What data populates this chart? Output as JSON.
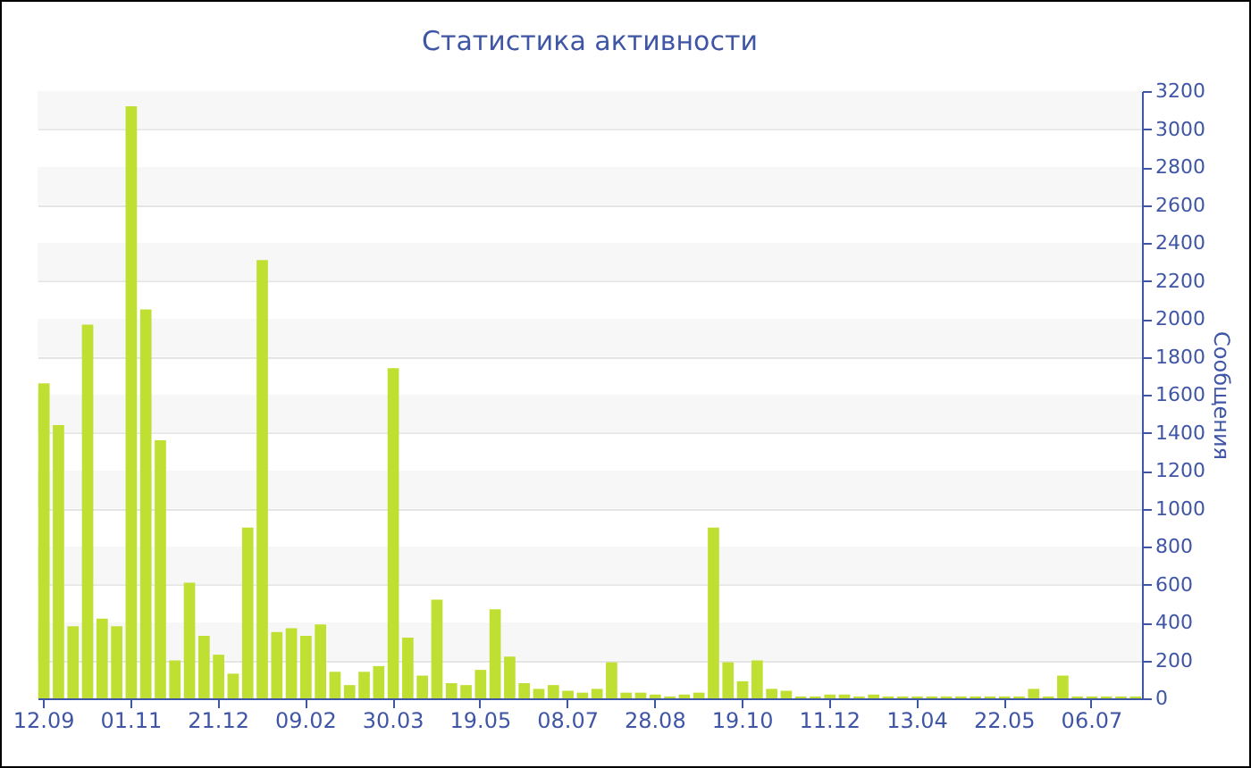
{
  "chart_data": {
    "type": "bar",
    "title": "Статистика активности",
    "ylabel": "Сообщения",
    "categories": [
      "12.09",
      null,
      null,
      null,
      null,
      null,
      "01.11",
      null,
      null,
      null,
      null,
      null,
      "21.12",
      null,
      null,
      null,
      null,
      null,
      "09.02",
      null,
      null,
      null,
      null,
      null,
      "30.03",
      null,
      null,
      null,
      null,
      null,
      "19.05",
      null,
      null,
      null,
      null,
      null,
      "08.07",
      null,
      null,
      null,
      null,
      null,
      "28.08",
      null,
      null,
      null,
      null,
      null,
      "19.10",
      null,
      null,
      null,
      null,
      null,
      "11.12",
      null,
      null,
      null,
      null,
      null,
      "13.04",
      null,
      null,
      null,
      null,
      null,
      "22.05",
      null,
      null,
      null,
      null,
      null,
      "06.07",
      null,
      null,
      null
    ],
    "values": [
      1660,
      1440,
      380,
      1970,
      420,
      380,
      3120,
      2050,
      1360,
      200,
      610,
      330,
      230,
      130,
      900,
      2310,
      350,
      370,
      330,
      390,
      140,
      70,
      140,
      170,
      1740,
      320,
      120,
      520,
      80,
      70,
      150,
      470,
      220,
      80,
      50,
      70,
      40,
      30,
      50,
      190,
      30,
      30,
      20,
      10,
      20,
      30,
      900,
      190,
      90,
      200,
      50,
      40,
      10,
      10,
      20,
      20,
      10,
      20,
      10,
      10,
      10,
      10,
      10,
      10,
      10,
      10,
      10,
      10,
      50,
      10,
      120,
      10,
      10,
      10,
      10,
      10
    ],
    "color": "#bfe032",
    "ylim": [
      0,
      3200
    ],
    "yticks": [
      0,
      200,
      400,
      600,
      800,
      1000,
      1200,
      1400,
      1600,
      1800,
      2000,
      2200,
      2400,
      2600,
      2800,
      3000,
      3200
    ],
    "grid": true
  }
}
